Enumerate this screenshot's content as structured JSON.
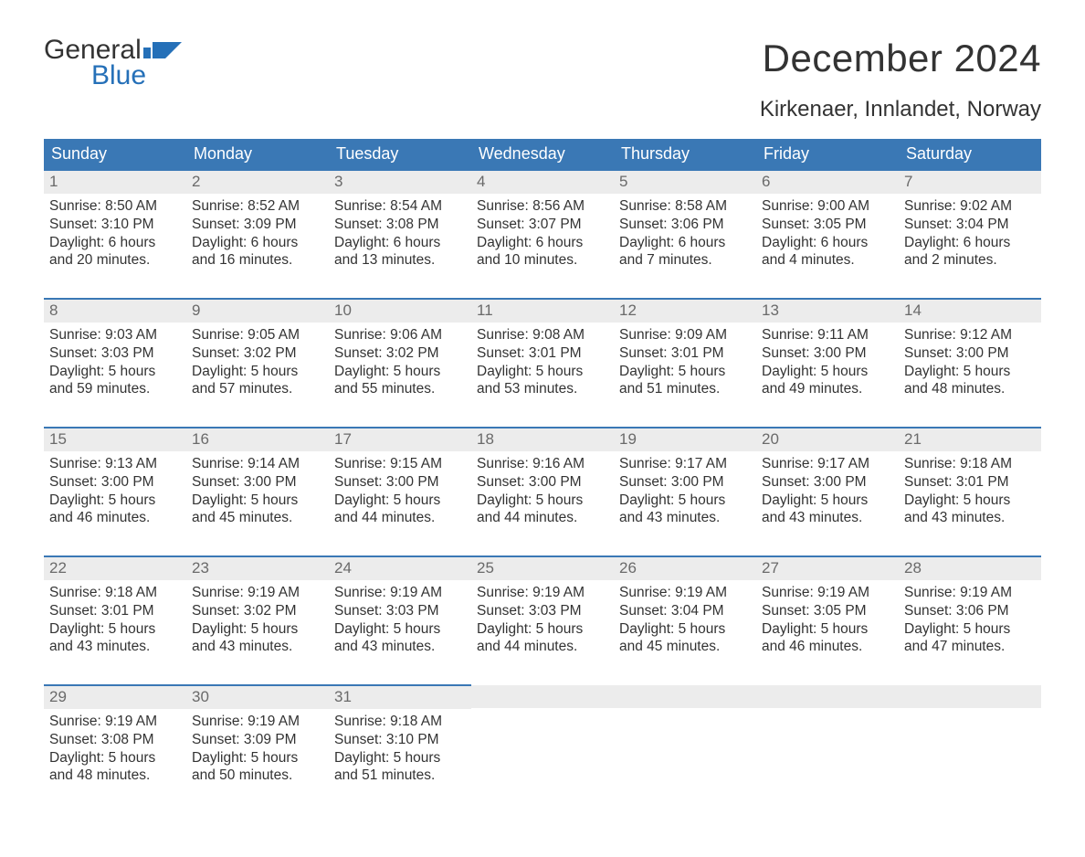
{
  "brand": {
    "word1": "General",
    "word2": "Blue"
  },
  "title": "December 2024",
  "location": "Kirkenaer, Innlandet, Norway",
  "colors": {
    "header_bg": "#3a78b5",
    "header_text": "#ffffff",
    "daynum_bg": "#ececec",
    "daynum_text": "#6a6a6a",
    "row_border": "#3a78b5",
    "body_text": "#333333",
    "brand_blue": "#2570b8",
    "page_bg": "#ffffff"
  },
  "day_headers": [
    "Sunday",
    "Monday",
    "Tuesday",
    "Wednesday",
    "Thursday",
    "Friday",
    "Saturday"
  ],
  "weeks": [
    [
      {
        "n": "1",
        "sr": "Sunrise: 8:50 AM",
        "ss": "Sunset: 3:10 PM",
        "d1": "Daylight: 6 hours",
        "d2": "and 20 minutes."
      },
      {
        "n": "2",
        "sr": "Sunrise: 8:52 AM",
        "ss": "Sunset: 3:09 PM",
        "d1": "Daylight: 6 hours",
        "d2": "and 16 minutes."
      },
      {
        "n": "3",
        "sr": "Sunrise: 8:54 AM",
        "ss": "Sunset: 3:08 PM",
        "d1": "Daylight: 6 hours",
        "d2": "and 13 minutes."
      },
      {
        "n": "4",
        "sr": "Sunrise: 8:56 AM",
        "ss": "Sunset: 3:07 PM",
        "d1": "Daylight: 6 hours",
        "d2": "and 10 minutes."
      },
      {
        "n": "5",
        "sr": "Sunrise: 8:58 AM",
        "ss": "Sunset: 3:06 PM",
        "d1": "Daylight: 6 hours",
        "d2": "and 7 minutes."
      },
      {
        "n": "6",
        "sr": "Sunrise: 9:00 AM",
        "ss": "Sunset: 3:05 PM",
        "d1": "Daylight: 6 hours",
        "d2": "and 4 minutes."
      },
      {
        "n": "7",
        "sr": "Sunrise: 9:02 AM",
        "ss": "Sunset: 3:04 PM",
        "d1": "Daylight: 6 hours",
        "d2": "and 2 minutes."
      }
    ],
    [
      {
        "n": "8",
        "sr": "Sunrise: 9:03 AM",
        "ss": "Sunset: 3:03 PM",
        "d1": "Daylight: 5 hours",
        "d2": "and 59 minutes."
      },
      {
        "n": "9",
        "sr": "Sunrise: 9:05 AM",
        "ss": "Sunset: 3:02 PM",
        "d1": "Daylight: 5 hours",
        "d2": "and 57 minutes."
      },
      {
        "n": "10",
        "sr": "Sunrise: 9:06 AM",
        "ss": "Sunset: 3:02 PM",
        "d1": "Daylight: 5 hours",
        "d2": "and 55 minutes."
      },
      {
        "n": "11",
        "sr": "Sunrise: 9:08 AM",
        "ss": "Sunset: 3:01 PM",
        "d1": "Daylight: 5 hours",
        "d2": "and 53 minutes."
      },
      {
        "n": "12",
        "sr": "Sunrise: 9:09 AM",
        "ss": "Sunset: 3:01 PM",
        "d1": "Daylight: 5 hours",
        "d2": "and 51 minutes."
      },
      {
        "n": "13",
        "sr": "Sunrise: 9:11 AM",
        "ss": "Sunset: 3:00 PM",
        "d1": "Daylight: 5 hours",
        "d2": "and 49 minutes."
      },
      {
        "n": "14",
        "sr": "Sunrise: 9:12 AM",
        "ss": "Sunset: 3:00 PM",
        "d1": "Daylight: 5 hours",
        "d2": "and 48 minutes."
      }
    ],
    [
      {
        "n": "15",
        "sr": "Sunrise: 9:13 AM",
        "ss": "Sunset: 3:00 PM",
        "d1": "Daylight: 5 hours",
        "d2": "and 46 minutes."
      },
      {
        "n": "16",
        "sr": "Sunrise: 9:14 AM",
        "ss": "Sunset: 3:00 PM",
        "d1": "Daylight: 5 hours",
        "d2": "and 45 minutes."
      },
      {
        "n": "17",
        "sr": "Sunrise: 9:15 AM",
        "ss": "Sunset: 3:00 PM",
        "d1": "Daylight: 5 hours",
        "d2": "and 44 minutes."
      },
      {
        "n": "18",
        "sr": "Sunrise: 9:16 AM",
        "ss": "Sunset: 3:00 PM",
        "d1": "Daylight: 5 hours",
        "d2": "and 44 minutes."
      },
      {
        "n": "19",
        "sr": "Sunrise: 9:17 AM",
        "ss": "Sunset: 3:00 PM",
        "d1": "Daylight: 5 hours",
        "d2": "and 43 minutes."
      },
      {
        "n": "20",
        "sr": "Sunrise: 9:17 AM",
        "ss": "Sunset: 3:00 PM",
        "d1": "Daylight: 5 hours",
        "d2": "and 43 minutes."
      },
      {
        "n": "21",
        "sr": "Sunrise: 9:18 AM",
        "ss": "Sunset: 3:01 PM",
        "d1": "Daylight: 5 hours",
        "d2": "and 43 minutes."
      }
    ],
    [
      {
        "n": "22",
        "sr": "Sunrise: 9:18 AM",
        "ss": "Sunset: 3:01 PM",
        "d1": "Daylight: 5 hours",
        "d2": "and 43 minutes."
      },
      {
        "n": "23",
        "sr": "Sunrise: 9:19 AM",
        "ss": "Sunset: 3:02 PM",
        "d1": "Daylight: 5 hours",
        "d2": "and 43 minutes."
      },
      {
        "n": "24",
        "sr": "Sunrise: 9:19 AM",
        "ss": "Sunset: 3:03 PM",
        "d1": "Daylight: 5 hours",
        "d2": "and 43 minutes."
      },
      {
        "n": "25",
        "sr": "Sunrise: 9:19 AM",
        "ss": "Sunset: 3:03 PM",
        "d1": "Daylight: 5 hours",
        "d2": "and 44 minutes."
      },
      {
        "n": "26",
        "sr": "Sunrise: 9:19 AM",
        "ss": "Sunset: 3:04 PM",
        "d1": "Daylight: 5 hours",
        "d2": "and 45 minutes."
      },
      {
        "n": "27",
        "sr": "Sunrise: 9:19 AM",
        "ss": "Sunset: 3:05 PM",
        "d1": "Daylight: 5 hours",
        "d2": "and 46 minutes."
      },
      {
        "n": "28",
        "sr": "Sunrise: 9:19 AM",
        "ss": "Sunset: 3:06 PM",
        "d1": "Daylight: 5 hours",
        "d2": "and 47 minutes."
      }
    ],
    [
      {
        "n": "29",
        "sr": "Sunrise: 9:19 AM",
        "ss": "Sunset: 3:08 PM",
        "d1": "Daylight: 5 hours",
        "d2": "and 48 minutes."
      },
      {
        "n": "30",
        "sr": "Sunrise: 9:19 AM",
        "ss": "Sunset: 3:09 PM",
        "d1": "Daylight: 5 hours",
        "d2": "and 50 minutes."
      },
      {
        "n": "31",
        "sr": "Sunrise: 9:18 AM",
        "ss": "Sunset: 3:10 PM",
        "d1": "Daylight: 5 hours",
        "d2": "and 51 minutes."
      },
      null,
      null,
      null,
      null
    ]
  ]
}
